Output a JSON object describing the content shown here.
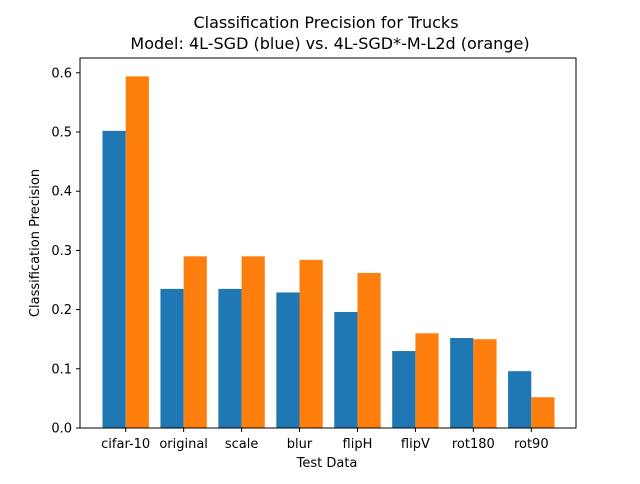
{
  "chart_data": {
    "type": "bar",
    "title": "Classification Precision for Trucks",
    "subtitle": "Model: 4L-SGD (blue) vs. 4L-SGD*-M-L2d (orange)",
    "xlabel": "Test Data",
    "ylabel": "Classification Precision",
    "categories": [
      "cifar-10",
      "original",
      "scale",
      "blur",
      "flipH",
      "flipV",
      "rot180",
      "rot90"
    ],
    "series": [
      {
        "values": [
          0.502,
          0.235,
          0.235,
          0.229,
          0.196,
          0.13,
          0.152,
          0.096
        ],
        "color": "#1f77b4"
      },
      {
        "values": [
          0.594,
          0.29,
          0.29,
          0.284,
          0.262,
          0.16,
          0.15,
          0.052
        ],
        "color": "#ff7f0e"
      }
    ],
    "ylim": [
      0,
      0.625
    ],
    "yticks": [
      0.0,
      0.1,
      0.2,
      0.3,
      0.4,
      0.5,
      0.6
    ],
    "ytick_labels": [
      "0.0",
      "0.1",
      "0.2",
      "0.3",
      "0.4",
      "0.5",
      "0.6"
    ],
    "grid": false,
    "legend": "none"
  }
}
